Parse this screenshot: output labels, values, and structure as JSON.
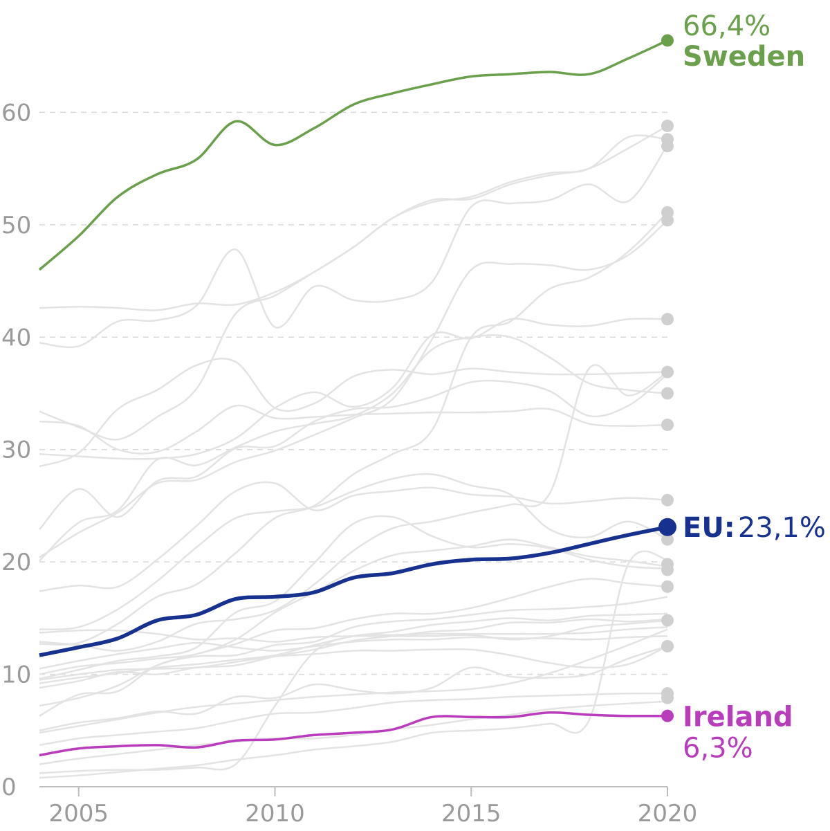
{
  "chart_data": {
    "type": "line",
    "x_ticks": [
      "2005",
      "2010",
      "2015",
      "2020"
    ],
    "y_ticks": [
      "0",
      "10",
      "20",
      "30",
      "40",
      "50",
      "60"
    ],
    "xlim": [
      2004,
      2020
    ],
    "ylim": [
      0,
      70
    ],
    "grid": "horizontal dashed",
    "highlighted_series": [
      {
        "name": "Sweden",
        "value_label": "66,4%",
        "color": "#6a9f4c",
        "x": [
          2004,
          2005,
          2006,
          2007,
          2008,
          2009,
          2010,
          2011,
          2012,
          2013,
          2014,
          2015,
          2016,
          2017,
          2018,
          2019,
          2020
        ],
        "y": [
          46.0,
          49.0,
          52.5,
          54.5,
          55.8,
          59.2,
          57.1,
          58.6,
          60.7,
          61.7,
          62.5,
          63.2,
          63.4,
          63.6,
          63.4,
          64.8,
          66.4
        ]
      },
      {
        "name": "EU:",
        "value_label": "23,1%",
        "color": "#17318f",
        "x": [
          2004,
          2005,
          2006,
          2007,
          2008,
          2009,
          2010,
          2011,
          2012,
          2013,
          2014,
          2015,
          2016,
          2017,
          2018,
          2019,
          2020
        ],
        "y": [
          11.7,
          12.4,
          13.2,
          14.8,
          15.3,
          16.7,
          16.9,
          17.3,
          18.6,
          19.0,
          19.8,
          20.2,
          20.3,
          20.8,
          21.6,
          22.4,
          23.1
        ]
      },
      {
        "name": "Ireland",
        "value_label": "6,3%",
        "color": "#b83cbc",
        "x": [
          2004,
          2005,
          2006,
          2007,
          2008,
          2009,
          2010,
          2011,
          2012,
          2013,
          2014,
          2015,
          2016,
          2017,
          2018,
          2019,
          2020
        ],
        "y": [
          2.8,
          3.4,
          3.6,
          3.7,
          3.5,
          4.1,
          4.2,
          4.6,
          4.8,
          5.1,
          6.2,
          6.2,
          6.2,
          6.6,
          6.4,
          6.3,
          6.3
        ]
      }
    ],
    "background_series": {
      "color": "#e3e3e3",
      "x": [
        2004,
        2005,
        2006,
        2007,
        2008,
        2009,
        2010,
        2011,
        2012,
        2013,
        2014,
        2015,
        2016,
        2017,
        2018,
        2019,
        2020
      ],
      "y": [
        [
          42.6,
          42.7,
          42.6,
          42.4,
          43.0,
          42.9,
          44.0,
          45.8,
          48.0,
          50.6,
          52.0,
          52.5,
          53.8,
          54.6,
          55.0,
          57.8,
          57.6
        ],
        [
          39.5,
          39.2,
          41.4,
          41.5,
          42.8,
          47.8,
          40.9,
          44.5,
          43.3,
          43.3,
          44.9,
          51.6,
          51.9,
          52.2,
          53.6,
          52.1,
          57.1
        ],
        [
          33.4,
          32.0,
          30.9,
          32.9,
          35.4,
          42.1,
          43.7,
          45.8,
          48.0,
          50.6,
          52.2,
          52.3,
          53.6,
          54.4,
          55.0,
          56.8,
          58.8
        ],
        [
          20.4,
          22.6,
          24.4,
          27.0,
          27.3,
          28.9,
          29.9,
          31.3,
          32.8,
          34.5,
          39.8,
          46.0,
          46.5,
          46.4,
          46.0,
          47.3,
          50.4
        ],
        [
          12.7,
          12.8,
          14.5,
          16.9,
          18.0,
          20.8,
          23.9,
          25.0,
          27.8,
          29.6,
          31.7,
          40.0,
          41.4,
          44.3,
          45.3,
          47.6,
          51.1
        ],
        [
          29.6,
          29.4,
          29.2,
          29.2,
          29.6,
          31.0,
          33.7,
          35.1,
          33.8,
          35.5,
          40.2,
          39.9,
          41.6,
          41.1,
          41.0,
          41.6,
          41.6
        ],
        [
          28.5,
          29.7,
          33.6,
          35.3,
          37.5,
          37.8,
          33.7,
          34.1,
          36.5,
          37.1,
          36.7,
          37.2,
          36.9,
          36.7,
          36.7,
          36.8,
          36.9
        ],
        [
          20.1,
          23.5,
          24.6,
          29.1,
          28.6,
          30.2,
          31.6,
          32.3,
          33.0,
          35.0,
          38.9,
          40.0,
          40.0,
          38.2,
          35.9,
          35.3,
          35.0
        ],
        [
          32.5,
          32.1,
          30.0,
          29.8,
          31.6,
          33.9,
          32.8,
          32.9,
          33.1,
          33.2,
          33.3,
          33.3,
          33.4,
          33.6,
          32.3,
          32.1,
          32.2
        ],
        [
          22.9,
          26.5,
          24.0,
          27.2,
          27.6,
          30.1,
          30.3,
          32.5,
          33.6,
          33.8,
          34.7,
          36.0,
          36.0,
          35.2,
          33.0,
          33.9,
          36.7
        ],
        [
          17.4,
          17.9,
          17.8,
          20.2,
          23.2,
          26.3,
          27.0,
          24.6,
          25.9,
          26.3,
          26.6,
          26.0,
          25.8,
          25.2,
          25.4,
          25.7,
          25.5
        ],
        [
          14.0,
          14.2,
          15.8,
          18.3,
          21.3,
          23.9,
          24.5,
          24.9,
          26.3,
          27.4,
          27.8,
          26.8,
          26.0,
          22.9,
          22.2,
          23.6,
          22.0
        ],
        [
          12.9,
          12.6,
          12.1,
          12.9,
          14.5,
          14.9,
          15.7,
          18.0,
          21.0,
          23.0,
          23.6,
          24.4,
          25.1,
          26.1,
          37.2,
          34.8,
          36.9
        ],
        [
          9.6,
          10.4,
          11.2,
          11.6,
          12.4,
          15.5,
          16.5,
          19.9,
          23.4,
          24.0,
          22.3,
          21.3,
          21.6,
          21.2,
          20.2,
          19.6,
          19.4
        ],
        [
          10.0,
          10.7,
          11.0,
          11.4,
          11.8,
          13.1,
          15.5,
          17.3,
          19.2,
          20.6,
          21.0,
          21.4,
          22.0,
          21.3,
          20.5,
          20.1,
          19.6
        ],
        [
          7.2,
          7.9,
          9.0,
          10.8,
          11.8,
          12.7,
          13.9,
          14.1,
          14.9,
          15.4,
          15.4,
          15.9,
          16.8,
          17.8,
          18.5,
          18.1,
          17.8
        ],
        [
          13.7,
          13.9,
          13.9,
          13.6,
          13.1,
          13.2,
          12.9,
          13.3,
          13.4,
          13.4,
          13.4,
          13.5,
          13.1,
          13.4,
          14.2,
          14.5,
          14.8
        ],
        [
          9.2,
          9.7,
          10.1,
          10.6,
          10.9,
          11.3,
          11.7,
          12.6,
          13.4,
          13.8,
          14.4,
          14.7,
          15.0,
          14.8,
          15.2,
          15.3,
          15.4
        ],
        [
          6.3,
          8.2,
          8.5,
          10.8,
          11.6,
          11.7,
          12.6,
          12.9,
          14.2,
          14.7,
          14.9,
          15.3,
          15.7,
          15.8,
          16.0,
          16.3,
          16.9
        ],
        [
          8.8,
          9.4,
          10.2,
          10.0,
          10.6,
          10.8,
          11.6,
          12.2,
          13.0,
          13.4,
          13.8,
          14.0,
          14.6,
          14.6,
          14.9,
          14.7,
          14.9
        ],
        [
          10.5,
          11.2,
          11.8,
          12.3,
          12.8,
          12.4,
          12.1,
          12.5,
          12.9,
          13.1,
          13.1,
          13.3,
          13.2,
          13.2,
          13.1,
          13.3,
          13.4
        ],
        [
          9.5,
          10.0,
          10.4,
          10.5,
          10.6,
          11.1,
          11.6,
          11.8,
          12.1,
          12.1,
          12.2,
          12.2,
          11.7,
          11.0,
          10.6,
          10.9,
          12.5
        ],
        [
          1.2,
          1.4,
          1.5,
          1.5,
          1.7,
          2.0,
          7.2,
          12.0,
          13.4,
          13.5,
          13.6,
          13.6,
          13.6,
          13.6,
          13.7,
          14.0,
          14.2
        ],
        [
          5.0,
          5.7,
          6.1,
          6.7,
          6.5,
          8.0,
          7.9,
          9.1,
          8.6,
          8.3,
          8.8,
          10.6,
          9.8,
          9.7,
          10.0,
          11.4,
          12.5
        ],
        [
          3.7,
          4.3,
          4.6,
          4.9,
          5.2,
          5.9,
          6.5,
          6.6,
          7.0,
          7.5,
          7.7,
          7.8,
          8.0,
          8.1,
          8.2,
          8.3,
          8.3
        ],
        [
          2.0,
          2.5,
          2.9,
          3.3,
          3.7,
          4.0,
          4.3,
          4.3,
          4.6,
          5.1,
          5.5,
          6.0,
          6.4,
          6.9,
          7.2,
          7.4,
          7.6
        ],
        [
          0.8,
          1.0,
          1.3,
          1.6,
          1.9,
          2.4,
          2.8,
          3.3,
          3.6,
          4.0,
          4.8,
          5.0,
          5.2,
          5.6,
          5.9,
          19.8,
          20.2
        ],
        [
          4.8,
          5.4,
          6.0,
          6.6,
          7.1,
          7.4,
          7.7,
          8.0,
          8.2,
          8.4,
          8.5,
          8.7,
          9.2,
          10.1,
          11.3,
          12.6,
          14.0
        ]
      ],
      "end_values": [
        58.8,
        57.6,
        57.0,
        51.1,
        50.4,
        41.6,
        36.9,
        35.0,
        32.2,
        25.5,
        23.0,
        22.0,
        19.8,
        19.3,
        17.8,
        14.8,
        12.5,
        8.3,
        7.9
      ]
    }
  }
}
